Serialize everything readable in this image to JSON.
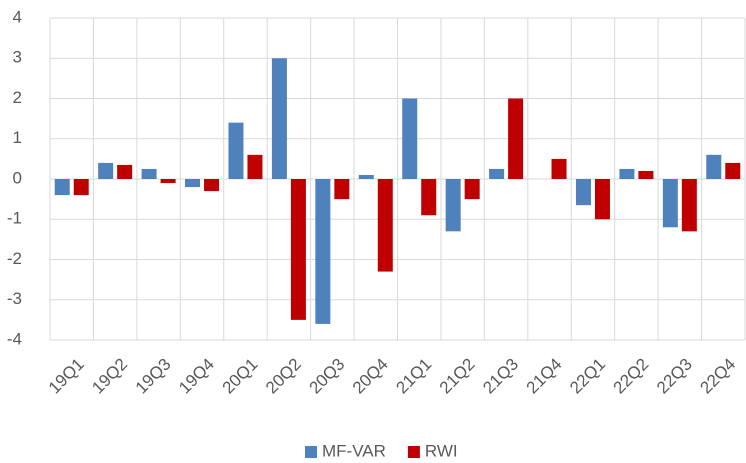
{
  "chart_data": {
    "type": "bar",
    "categories": [
      "19Q1",
      "19Q2",
      "19Q3",
      "19Q4",
      "20Q1",
      "20Q2",
      "20Q3",
      "20Q4",
      "21Q1",
      "21Q2",
      "21Q3",
      "21Q4",
      "22Q1",
      "22Q2",
      "22Q3",
      "22Q4"
    ],
    "series": [
      {
        "name": "MF-VAR",
        "color": "#4f81bd",
        "values": [
          -0.4,
          0.4,
          0.25,
          -0.2,
          1.4,
          3.0,
          -3.6,
          0.1,
          2.0,
          -1.3,
          0.25,
          0,
          -0.65,
          0.25,
          -1.2,
          0.6
        ]
      },
      {
        "name": "RWI",
        "color": "#c00000",
        "values": [
          -0.4,
          0.35,
          -0.1,
          -0.3,
          0.6,
          -3.5,
          -0.5,
          -2.3,
          -0.9,
          -0.5,
          2.0,
          0.5,
          -1.0,
          0.2,
          -1.3,
          0.4
        ]
      }
    ],
    "ylim": [
      -4,
      4
    ],
    "yticks": [
      -4,
      -3,
      -2,
      -1,
      0,
      1,
      2,
      3,
      4
    ],
    "grid": true,
    "legend": "bottom"
  }
}
